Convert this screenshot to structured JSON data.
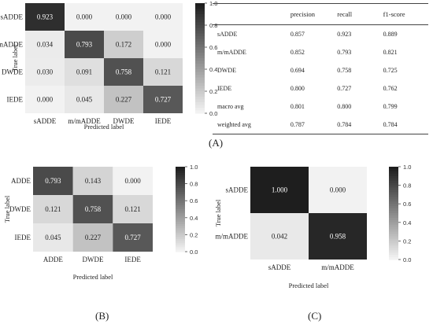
{
  "chart_data": [
    {
      "type": "heatmap",
      "panel": "A",
      "xlabel": "Predicted label",
      "ylabel": "True label",
      "x_categories": [
        "sADDE",
        "m/mADDE",
        "DWDE",
        "IEDE"
      ],
      "y_categories": [
        "sADDE",
        "m/mADDE",
        "DWDE",
        "IEDE"
      ],
      "values": [
        [
          "0.923",
          "0.000",
          "0.000",
          "0.000"
        ],
        [
          "0.034",
          "0.793",
          "0.172",
          "0.000"
        ],
        [
          "0.030",
          "0.091",
          "0.758",
          "0.121"
        ],
        [
          "0.000",
          "0.045",
          "0.227",
          "0.727"
        ]
      ],
      "colorbar": {
        "range": [
          0,
          1
        ],
        "ticks": [
          "0.0",
          "0.2",
          "0.4",
          "0.6",
          "0.8",
          "1.0"
        ]
      }
    },
    {
      "type": "table",
      "panel": "A",
      "columns": [
        "",
        "precision",
        "recall",
        "f1-score"
      ],
      "rows": [
        [
          "sADDE",
          "0.857",
          "0.923",
          "0.889"
        ],
        [
          "m/mADDE",
          "0.852",
          "0.793",
          "0.821"
        ],
        [
          "DWDE",
          "0.694",
          "0.758",
          "0.725"
        ],
        [
          "IEDE",
          "0.800",
          "0.727",
          "0.762"
        ],
        [
          "macro avg",
          "0.801",
          "0.800",
          "0.799"
        ],
        [
          "weighted avg",
          "0.787",
          "0.784",
          "0.784"
        ]
      ]
    },
    {
      "type": "heatmap",
      "panel": "B",
      "xlabel": "Predicted label",
      "ylabel": "True label",
      "x_categories": [
        "ADDE",
        "DWDE",
        "IEDE"
      ],
      "y_categories": [
        "ADDE",
        "DWDE",
        "IEDE"
      ],
      "values": [
        [
          "0.793",
          "0.143",
          "0.000"
        ],
        [
          "0.121",
          "0.758",
          "0.121"
        ],
        [
          "0.045",
          "0.227",
          "0.727"
        ]
      ],
      "colorbar": {
        "range": [
          0,
          1
        ],
        "ticks": [
          "0.0",
          "0.2",
          "0.4",
          "0.6",
          "0.8",
          "1.0"
        ]
      }
    },
    {
      "type": "heatmap",
      "panel": "C",
      "xlabel": "Predicted label",
      "ylabel": "True label",
      "x_categories": [
        "sADDE",
        "m/mADDE"
      ],
      "y_categories": [
        "sADDE",
        "m/mADDE"
      ],
      "values": [
        [
          "1.000",
          "0.000"
        ],
        [
          "0.042",
          "0.958"
        ]
      ],
      "colorbar": {
        "range": [
          0,
          1
        ],
        "ticks": [
          "0.0",
          "0.2",
          "0.4",
          "0.6",
          "0.8",
          "1.0"
        ]
      }
    }
  ],
  "panel_labels": {
    "a": "(A)",
    "b": "(B)",
    "c": "(C)"
  }
}
